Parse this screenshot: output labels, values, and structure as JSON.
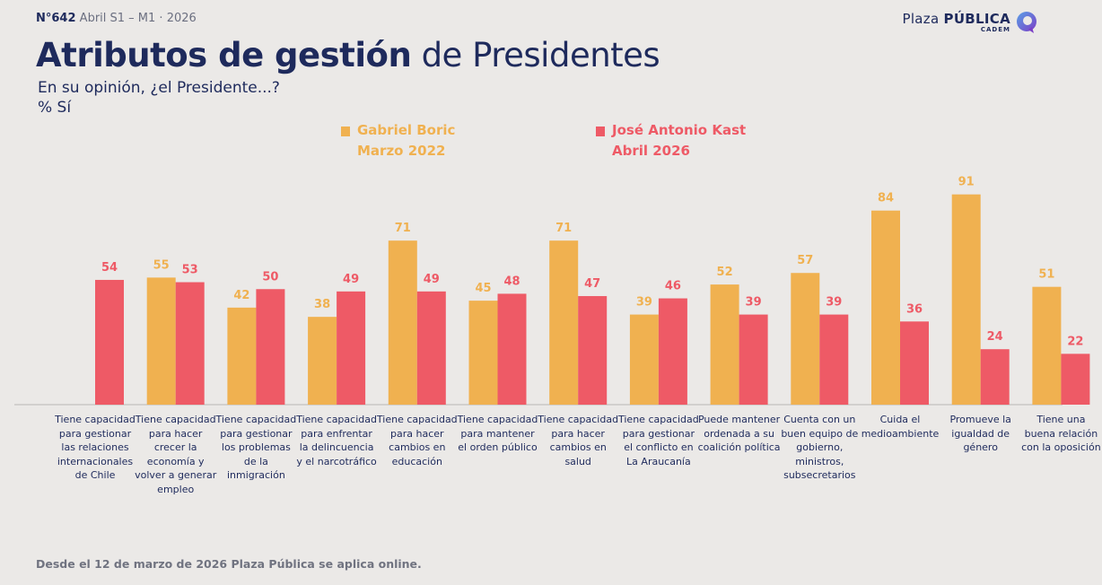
{
  "header": {
    "issue": "N°642",
    "period": "Abril S1 – M1 · 2026"
  },
  "brand": {
    "name_light": "Plaza",
    "name_bold": "PÚBLICA",
    "sub": "CADEM"
  },
  "colors": {
    "boric": "#f0b150",
    "kast": "#ee5a66",
    "text": "#1e2a5c"
  },
  "title": {
    "bold": "Atributos de gestión",
    "regular": "de Presidentes"
  },
  "question": "En su opinión, ¿el Presidente...?",
  "unit": "% Sí",
  "legend": {
    "boric_line1": "Gabriel Boric",
    "boric_line2": "Marzo 2022",
    "kast_line1": "José Antonio Kast",
    "kast_line2": "Abril 2026"
  },
  "footnote": "Desde el 12 de marzo de 2026 Plaza Pública se aplica online.",
  "chart_data": {
    "type": "bar",
    "ylim": [
      0,
      100
    ],
    "grid": false,
    "categories": [
      "Tiene capacidad para gestionar las relaciones internacionales de Chile",
      "Tiene capacidad para hacer crecer la economía y volver a generar empleo",
      "Tiene capacidad para gestionar los problemas de la inmigración",
      "Tiene capacidad para enfrentar la delincuencia y el narcotráfico",
      "Tiene capacidad para hacer cambios en educación",
      "Tiene capacidad para mantener el orden público",
      "Tiene capacidad para hacer cambios en salud",
      "Tiene capacidad para gestionar el conflicto en La Araucanía",
      "Puede mantener ordenada a su coalición política",
      "Cuenta con un buen equipo de gobierno, ministros, subsecretarios",
      "Cuida el medioambiente",
      "Promueve la igualdad de género",
      "Tiene una buena relación con la oposición"
    ],
    "series": [
      {
        "name": "Gabriel Boric Marzo 2022",
        "values": [
          null,
          55,
          42,
          38,
          71,
          45,
          71,
          39,
          52,
          57,
          84,
          91,
          51
        ]
      },
      {
        "name": "José Antonio Kast Abril 2026",
        "values": [
          54,
          53,
          50,
          49,
          49,
          48,
          47,
          46,
          39,
          39,
          36,
          24,
          22
        ]
      }
    ]
  }
}
